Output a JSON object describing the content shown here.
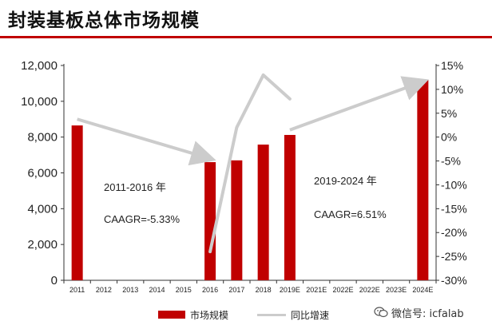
{
  "title": "封装基板总体市场规模",
  "legend": {
    "bar_label": "市场规模",
    "line_label": "同比增速"
  },
  "watermark": {
    "text": "微信号: icfalab"
  },
  "colors": {
    "bar": "#c00000",
    "line": "#cccccc",
    "arrow": "#cccccc",
    "accent": "#c00000"
  },
  "chart_data": {
    "type": "bar",
    "categories": [
      "2011",
      "2012",
      "2013",
      "2014",
      "2015",
      "2016",
      "2017",
      "2018",
      "2019E",
      "2021E",
      "2022E",
      "2022E",
      "2023E",
      "2024E"
    ],
    "series": [
      {
        "name": "市场规模",
        "type": "bar",
        "axis": "left",
        "values": [
          8650,
          null,
          null,
          null,
          null,
          6600,
          6700,
          7580,
          8120,
          null,
          null,
          null,
          null,
          11200
        ]
      },
      {
        "name": "同比增速",
        "type": "line",
        "axis": "right",
        "unit": "%",
        "values": [
          null,
          null,
          null,
          null,
          null,
          -24,
          2,
          13,
          8,
          null,
          null,
          null,
          null,
          null
        ]
      }
    ],
    "y_left": {
      "min": 0,
      "max": 12000,
      "ticks": [
        "0",
        "2,000",
        "4,000",
        "6,000",
        "8,000",
        "10,000",
        "12,000"
      ]
    },
    "y_right": {
      "min": -30,
      "max": 15,
      "ticks": [
        "-30%",
        "-25%",
        "-20%",
        "-15%",
        "-10%",
        "-5%",
        "0%",
        "5%",
        "10%",
        "15%"
      ]
    },
    "annotations": [
      {
        "period": "2011-2016 年",
        "cagr": "CAAGR=-5.33%"
      },
      {
        "period": "2019-2024 年",
        "cagr": "CAAGR=6.51%"
      }
    ],
    "arrows": [
      {
        "from": {
          "category": "2011",
          "value": 9000
        },
        "to": {
          "category": "2016",
          "value": 6800
        }
      },
      {
        "from": {
          "category": "2019E",
          "value": 8400
        },
        "to": {
          "category": "2024E",
          "value": 11100
        }
      }
    ],
    "grid": false,
    "legend_position": "bottom"
  }
}
